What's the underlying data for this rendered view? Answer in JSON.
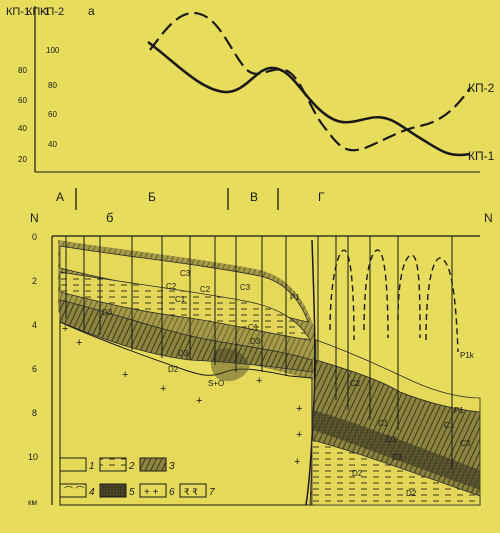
{
  "panel_label": "а",
  "axes": {
    "kp1_label": "КП-1",
    "kp2_label": "КП-2",
    "kp1_ticks": [
      "80",
      "60",
      "40",
      "20"
    ],
    "kp2_ticks": [
      "100",
      "80",
      "60",
      "40"
    ]
  },
  "curve_labels": {
    "kp2": "КП-2",
    "kp1": "КП-1"
  },
  "zones": [
    "А",
    "Б",
    "В",
    "Г"
  ],
  "zone_sub": "б",
  "compass": {
    "left": "N",
    "right": "N"
  },
  "depth_ticks": [
    "0",
    "2",
    "4",
    "6",
    "8",
    "10"
  ],
  "depth_unit": "км",
  "strata_labels": [
    "C3",
    "C2",
    "C1",
    "C2",
    "C3",
    "D3",
    "C1",
    "D3",
    "D3",
    "D2",
    "S+O",
    "P1",
    "C2",
    "C1",
    "D3",
    "D3",
    "C3",
    "C1",
    "P1",
    "P1k",
    "D2",
    "D2"
  ],
  "legend": [
    "1",
    "2",
    "3",
    "4",
    "5",
    "6",
    "7"
  ]
}
